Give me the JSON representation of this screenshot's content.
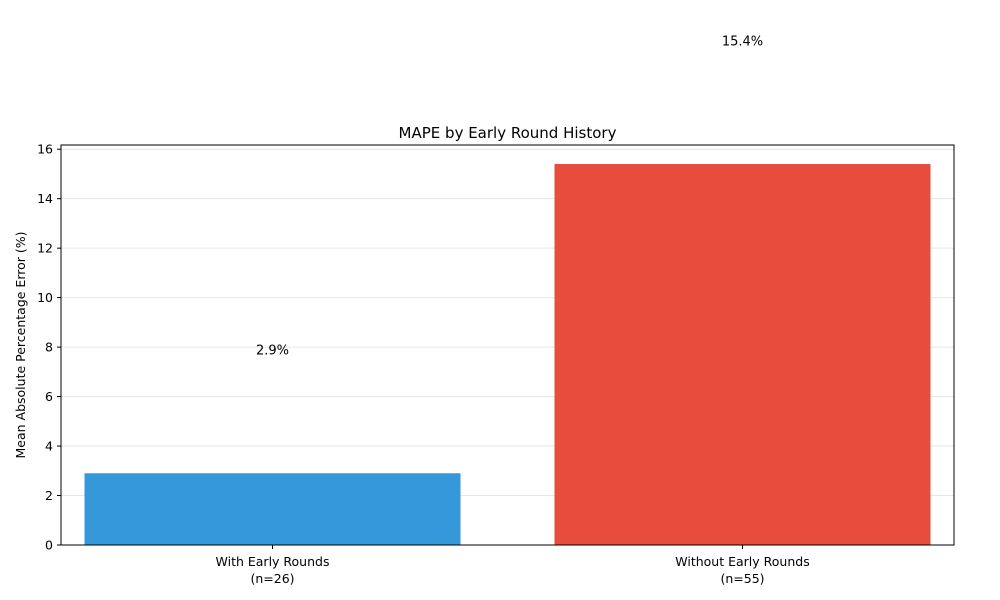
{
  "chart_data": {
    "type": "bar",
    "title": "MAPE by Early Round History",
    "xlabel": "",
    "ylabel": "Mean Absolute Percentage Error (%)",
    "categories": [
      {
        "line1": "With Early Rounds",
        "line2": "(n=26)"
      },
      {
        "line1": "Without Early Rounds",
        "line2": "(n=55)"
      }
    ],
    "values": [
      2.9,
      15.4
    ],
    "data_labels": [
      "2.9%",
      "15.4%"
    ],
    "colors": [
      "#3498db",
      "#e74c3c"
    ],
    "ylim": [
      0,
      16.17
    ],
    "yticks": [
      0,
      2,
      4,
      6,
      8,
      10,
      12,
      14,
      16
    ],
    "grid": "y",
    "legend": "none"
  }
}
